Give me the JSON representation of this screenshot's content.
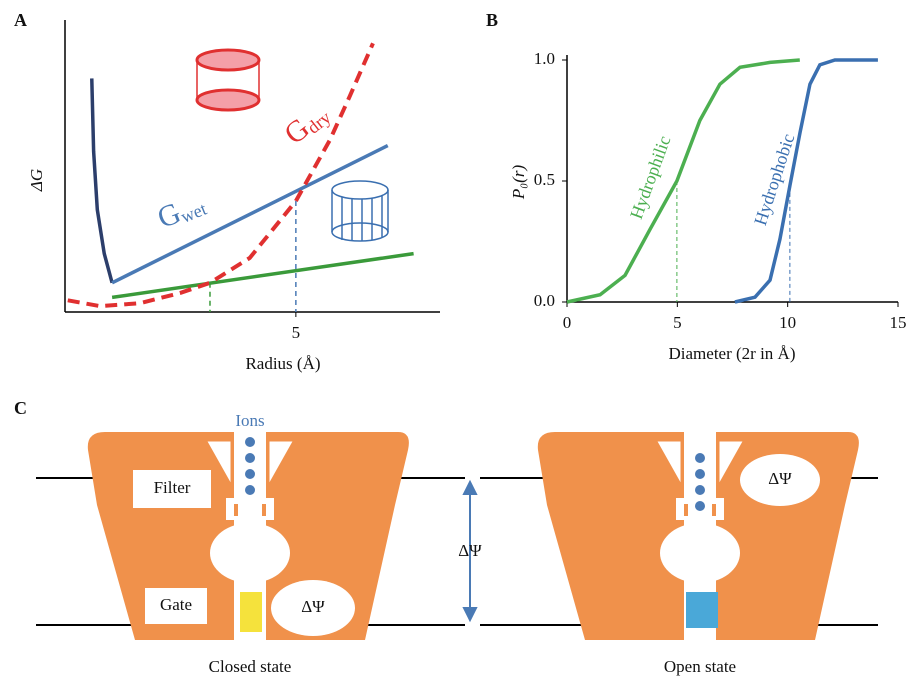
{
  "chart_data": [
    {
      "type": "line",
      "xlabel": "Radius (Å)",
      "ylabel": "ΔG",
      "xlim": [
        0,
        8.1
      ],
      "ylim": [
        0,
        1
      ],
      "xticks": [
        5
      ],
      "series": [
        {
          "color": "#2c3e6b",
          "style": "solid",
          "x": [
            0.58,
            0.62,
            0.7,
            0.85,
            1.02
          ],
          "values": [
            0.8,
            0.55,
            0.35,
            0.2,
            0.1
          ]
        },
        {
          "color": "#4a7ab5",
          "style": "solid",
          "x": [
            1.02,
            6.99
          ],
          "values": [
            0.1,
            0.57
          ]
        },
        {
          "color": "#3a9a3a",
          "style": "solid",
          "x": [
            1.02,
            7.55
          ],
          "values": [
            0.05,
            0.2
          ]
        },
        {
          "color": "#e03030",
          "style": "dashed",
          "x": [
            0.06,
            0.76,
            1.62,
            2.49,
            3.14,
            4.0,
            5.0,
            5.74,
            6.17,
            6.67
          ],
          "values": [
            0.04,
            0.02,
            0.03,
            0.065,
            0.1,
            0.185,
            0.38,
            0.59,
            0.74,
            0.92
          ]
        }
      ],
      "annotations": [
        {
          "text": "G",
          "sub": "wet"
        },
        {
          "text": "G",
          "sub": "dry"
        }
      ]
    },
    {
      "type": "line",
      "xlabel": "Diameter (2r in Å)",
      "ylabel": "P₀(r)",
      "xlim": [
        0,
        15
      ],
      "ylim": [
        0,
        1
      ],
      "xticks": [
        0,
        5,
        10,
        15
      ],
      "yticks": [
        {
          "value": 0,
          "label": "0.0"
        },
        {
          "value": 0.5,
          "label": "0.5"
        },
        {
          "value": 1,
          "label": "1.0"
        }
      ],
      "series": [
        {
          "name": "Hydrophilic",
          "color": "#4caf50",
          "style": "solid",
          "x": [
            0,
            1.5,
            2.63,
            3.76,
            4.98,
            6.02,
            6.93,
            7.84,
            9.2,
            10.55
          ],
          "values": [
            0,
            0.03,
            0.11,
            0.3,
            0.5,
            0.75,
            0.9,
            0.97,
            0.99,
            1.0
          ]
        },
        {
          "name": "Hydrophobic",
          "color": "#3a6fb0",
          "style": "solid",
          "x": [
            7.61,
            8.52,
            9.2,
            9.65,
            10.1,
            10.56,
            11.01,
            11.46,
            12.14,
            14.09
          ],
          "values": [
            0,
            0.02,
            0.09,
            0.26,
            0.48,
            0.7,
            0.9,
            0.98,
            1.0,
            1.0
          ]
        }
      ]
    }
  ],
  "panel_labels": [
    "A",
    "B",
    "C"
  ],
  "diagram": {
    "ions_label": "Ions",
    "filter_label": "Filter",
    "gate_label": "Gate",
    "potential_label": "ΔΨ",
    "states": [
      "Closed state",
      "Open state"
    ]
  }
}
